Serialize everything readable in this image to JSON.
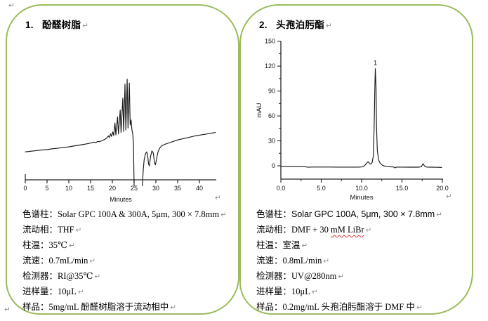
{
  "marks": {
    "return_glyph": "↵"
  },
  "theme": {
    "border_green": "#9cbb5c",
    "trace_color": "#1a1a1a",
    "text_color": "#000000",
    "pilcrow_gray": "#8f8f8f",
    "spellcheck_red": "#e03030"
  },
  "panels": [
    {
      "title": {
        "number": "1.",
        "text": "酚醛树脂"
      },
      "specs": [
        {
          "label": "色谱柱：",
          "value": "Solar GPC 100A & 300A, 5μm, 300 × 7.8mm"
        },
        {
          "label": "流动相：",
          "value": "THF"
        },
        {
          "label": "柱温：",
          "value": "35℃"
        },
        {
          "label": "流速：",
          "value": "0.7mL/min"
        },
        {
          "label": "检测器：",
          "value": "RI@35℃"
        },
        {
          "label": "进样量：",
          "value": "10μL"
        },
        {
          "label": "样品：",
          "value": "5mg/mL 酚醛树脂溶于流动相中"
        }
      ]
    },
    {
      "title": {
        "number": "2.",
        "text": "头孢泊肟酯"
      },
      "specs": [
        {
          "label": "色谱柱：",
          "value": "Solar GPC 100A, 5μm, 300  × 7.8mm"
        },
        {
          "label": "流动相：",
          "value": "DMF + 30 ",
          "wavy": "mM LiBr"
        },
        {
          "label": "柱温：",
          "value": "室温"
        },
        {
          "label": "流速：",
          "value": "0.8mL/min"
        },
        {
          "label": "检测器：",
          "value": "UV@280nm"
        },
        {
          "label": "进样量：",
          "value": "10μL"
        },
        {
          "label": "样品：",
          "value": "0.2mg/mL 头孢泊肟酯溶于 DMF 中"
        }
      ]
    }
  ],
  "chart_data": [
    {
      "type": "line",
      "title": "酚醛树脂 GPC 色谱图 (RI trace)",
      "xlabel": "Minutes",
      "ylabel": "",
      "xlim": [
        0,
        43.7
      ],
      "x_major_ticks": [
        0,
        5,
        10,
        15,
        20,
        25,
        30,
        35,
        40
      ],
      "y_axis_visible": false,
      "y_units": "arbitrary RI response (no y-axis shown), axis line = 0",
      "ylim_display": [
        -8,
        112
      ],
      "grid": false,
      "segments": [
        [
          [
            0,
            28
          ],
          [
            1,
            28.5
          ],
          [
            2,
            29
          ],
          [
            3,
            29.5
          ],
          [
            4,
            30
          ],
          [
            5,
            30.3
          ],
          [
            6,
            31
          ],
          [
            7,
            31.5
          ],
          [
            8,
            32
          ],
          [
            9,
            32.5
          ],
          [
            10,
            33
          ],
          [
            11,
            33.8
          ],
          [
            12,
            34.5
          ],
          [
            13,
            35.2
          ],
          [
            14,
            36
          ],
          [
            15,
            36.8
          ],
          [
            15.8,
            37.8
          ],
          [
            16.2,
            37.2
          ],
          [
            16.6,
            38.5
          ],
          [
            17,
            38.2
          ],
          [
            17.5,
            39
          ],
          [
            18,
            40
          ],
          [
            18.5,
            41.2
          ],
          [
            18.8,
            42.5
          ],
          [
            19.1,
            44
          ],
          [
            19.3,
            42.5
          ],
          [
            19.6,
            46
          ],
          [
            19.8,
            43.5
          ],
          [
            20.1,
            48
          ],
          [
            20.3,
            44.5
          ],
          [
            20.6,
            57
          ],
          [
            20.8,
            45
          ],
          [
            21.2,
            63
          ],
          [
            21.4,
            46
          ],
          [
            21.8,
            70
          ],
          [
            22.0,
            47.5
          ],
          [
            22.4,
            82
          ],
          [
            22.6,
            48.5
          ],
          [
            22.9,
            96
          ],
          [
            23.1,
            50
          ],
          [
            23.4,
            101
          ],
          [
            23.6,
            52
          ],
          [
            23.9,
            97
          ],
          [
            24.1,
            55
          ],
          [
            24.3,
            60
          ],
          [
            24.5,
            50
          ],
          [
            24.7,
            46
          ],
          [
            24.85,
            35
          ],
          [
            25.0,
            -6
          ]
        ],
        [
          [
            26.9,
            -6
          ],
          [
            27.1,
            10
          ],
          [
            27.3,
            20
          ],
          [
            27.6,
            26
          ],
          [
            27.9,
            28
          ],
          [
            28.1,
            25
          ],
          [
            28.3,
            16
          ],
          [
            28.5,
            14
          ],
          [
            28.8,
            24
          ],
          [
            29.1,
            29
          ],
          [
            29.4,
            27
          ],
          [
            29.7,
            17
          ],
          [
            29.9,
            15
          ],
          [
            30.2,
            22
          ],
          [
            30.5,
            28
          ],
          [
            30.9,
            32
          ],
          [
            31.3,
            34
          ],
          [
            32,
            35.5
          ],
          [
            33,
            37
          ],
          [
            34,
            38.5
          ],
          [
            35,
            40
          ],
          [
            36,
            41
          ],
          [
            37,
            42
          ],
          [
            38,
            43
          ],
          [
            39,
            44
          ],
          [
            40,
            44.8
          ],
          [
            41,
            45.5
          ],
          [
            42,
            46.2
          ],
          [
            43,
            47
          ],
          [
            43.7,
            47.5
          ]
        ]
      ]
    },
    {
      "type": "line",
      "title": "头孢泊肟酯 HPLC 色谱图 (UV trace)",
      "xlabel": "Minutes",
      "ylabel": "mAU",
      "xlim": [
        0,
        20
      ],
      "ylim": [
        0,
        150
      ],
      "x_major_ticks": [
        0,
        5,
        10,
        15,
        20
      ],
      "x_major_tick_labels": [
        "0.0",
        "5.0",
        "10.0",
        "15.0",
        "20.0"
      ],
      "x_minor_ticks": [
        2.5,
        7.5,
        12.5,
        17.5
      ],
      "y_major_ticks": [
        0,
        30,
        60,
        90,
        120,
        150
      ],
      "y_minor_ticks": [
        15,
        45,
        75,
        105,
        135
      ],
      "grid": false,
      "peaks": [
        {
          "label": "1",
          "x": 11.7,
          "y": 117
        }
      ],
      "points": [
        [
          0,
          -1
        ],
        [
          0.5,
          -1
        ],
        [
          1,
          -1
        ],
        [
          1.5,
          -1.1
        ],
        [
          2,
          -1.1
        ],
        [
          2.5,
          -1.1
        ],
        [
          3,
          -1.2
        ],
        [
          3.4,
          -1.8
        ],
        [
          3.8,
          -1.5
        ],
        [
          4.5,
          -1.5
        ],
        [
          5,
          -1.5
        ],
        [
          6,
          -1.5
        ],
        [
          7,
          -1.6
        ],
        [
          8,
          -1.6
        ],
        [
          9,
          -1.6
        ],
        [
          9.6,
          -1.6
        ],
        [
          10.0,
          -1.4
        ],
        [
          10.3,
          -0.5
        ],
        [
          10.6,
          3
        ],
        [
          10.8,
          5
        ],
        [
          11.0,
          2.5
        ],
        [
          11.15,
          2
        ],
        [
          11.3,
          4
        ],
        [
          11.45,
          12
        ],
        [
          11.55,
          45
        ],
        [
          11.65,
          100
        ],
        [
          11.7,
          117
        ],
        [
          11.78,
          95
        ],
        [
          11.85,
          45
        ],
        [
          11.95,
          18
        ],
        [
          12.1,
          7
        ],
        [
          12.3,
          3
        ],
        [
          12.6,
          0.5
        ],
        [
          13.0,
          -0.8
        ],
        [
          13.5,
          -1.2
        ],
        [
          14.0,
          -1.5
        ],
        [
          14.15,
          -2.5
        ],
        [
          14.3,
          -1.6
        ],
        [
          15,
          -1.6
        ],
        [
          16,
          -1.7
        ],
        [
          17,
          -1.7
        ],
        [
          17.4,
          -1.2
        ],
        [
          17.6,
          2.5
        ],
        [
          17.8,
          -0.3
        ],
        [
          18.0,
          -1.5
        ],
        [
          18.5,
          -1.7
        ],
        [
          19,
          -1.8
        ],
        [
          19.5,
          -1.9
        ],
        [
          19.9,
          -2
        ]
      ]
    }
  ]
}
